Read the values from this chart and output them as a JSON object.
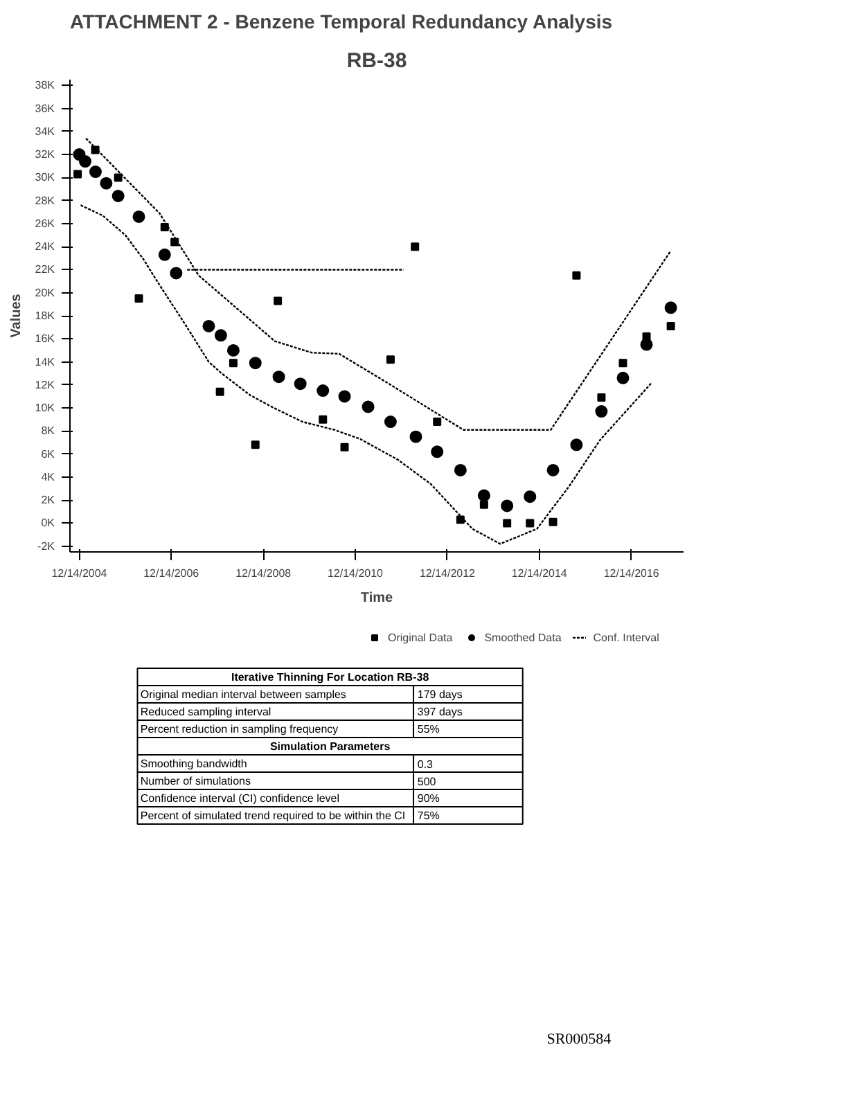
{
  "chart_data": {
    "type": "scatter",
    "title": "ATTACHMENT 2 - Benzene Temporal Redundancy Analysis",
    "subtitle": "RB-38",
    "xlabel": "Time",
    "ylabel": "Values",
    "xlim": [
      "2004-10-01",
      "2018-02-01"
    ],
    "xticks": [
      {
        "value": "2004-12-14",
        "label": "12/14/2004"
      },
      {
        "value": "2006-12-14",
        "label": "12/14/2006"
      },
      {
        "value": "2008-12-14",
        "label": "12/14/2008"
      },
      {
        "value": "2010-12-14",
        "label": "12/14/2010"
      },
      {
        "value": "2012-12-14",
        "label": "12/14/2012"
      },
      {
        "value": "2014-12-14",
        "label": "12/14/2014"
      },
      {
        "value": "2016-12-14",
        "label": "12/14/2016"
      }
    ],
    "ylim": [
      -2500,
      38500
    ],
    "yticks": [
      {
        "value": -2000,
        "label": "-2K"
      },
      {
        "value": 0,
        "label": "0K"
      },
      {
        "value": 2000,
        "label": "2K"
      },
      {
        "value": 4000,
        "label": "4K"
      },
      {
        "value": 6000,
        "label": "6K"
      },
      {
        "value": 8000,
        "label": "8K"
      },
      {
        "value": 10000,
        "label": "10K"
      },
      {
        "value": 12000,
        "label": "12K"
      },
      {
        "value": 14000,
        "label": "14K"
      },
      {
        "value": 16000,
        "label": "16K"
      },
      {
        "value": 18000,
        "label": "18K"
      },
      {
        "value": 20000,
        "label": "20K"
      },
      {
        "value": 22000,
        "label": "22K"
      },
      {
        "value": 24000,
        "label": "24K"
      },
      {
        "value": 26000,
        "label": "26K"
      },
      {
        "value": 28000,
        "label": "28K"
      },
      {
        "value": 30000,
        "label": "30K"
      },
      {
        "value": 32000,
        "label": "32K"
      },
      {
        "value": 34000,
        "label": "34K"
      },
      {
        "value": 36000,
        "label": "36K"
      },
      {
        "value": 38000,
        "label": "38K"
      }
    ],
    "grid": false,
    "legend": "bottom",
    "series": [
      {
        "name": "Original Data",
        "type": "scatter",
        "marker": "square",
        "color": "#000000",
        "x": [
          "2004-12-01",
          "2005-04-20",
          "2005-10-19",
          "2006-04-01",
          "2006-10-23",
          "2007-01-10",
          "2008-01-05",
          "2008-04-20",
          "2008-10-12",
          "2009-04-08",
          "2010-04-01",
          "2010-09-20",
          "2011-09-20",
          "2012-04-01",
          "2012-09-24",
          "2013-03-28",
          "2013-10-01",
          "2014-04-02",
          "2014-10-01",
          "2015-04-02",
          "2015-10-05",
          "2016-04-20",
          "2016-10-08",
          "2017-04-13",
          "2017-10-23"
        ],
        "values": [
          30300,
          32400,
          30000,
          19500,
          25700,
          24400,
          11400,
          13900,
          6800,
          19300,
          9000,
          6600,
          14200,
          24000,
          8800,
          300,
          1600,
          0,
          0,
          100,
          21500,
          10900,
          13900,
          16200,
          17100
        ]
      },
      {
        "name": "Smoothed Data",
        "type": "scatter",
        "marker": "circle",
        "color": "#000000",
        "x": [
          "2004-12-14",
          "2005-01-30",
          "2005-04-22",
          "2005-07-16",
          "2005-10-19",
          "2006-04-01",
          "2006-10-23",
          "2007-01-22",
          "2007-10-08",
          "2008-01-12",
          "2008-04-20",
          "2008-10-12",
          "2009-04-16",
          "2009-10-04",
          "2010-04-01",
          "2010-09-20",
          "2011-03-26",
          "2011-09-20",
          "2012-04-08",
          "2012-09-24",
          "2013-03-28",
          "2013-10-01",
          "2014-04-02",
          "2014-10-01",
          "2015-04-02",
          "2015-10-05",
          "2016-04-20",
          "2016-10-08",
          "2017-04-13",
          "2017-10-23"
        ],
        "values": [
          32000,
          31400,
          30500,
          29500,
          28400,
          26600,
          23300,
          21700,
          17100,
          16300,
          15000,
          13900,
          12700,
          12100,
          11500,
          11000,
          10100,
          8800,
          7500,
          6200,
          4600,
          2400,
          1500,
          2300,
          4600,
          6800,
          9700,
          12600,
          15500,
          18700
        ]
      },
      {
        "name": "Conf. Interval",
        "type": "line",
        "line_style": "dotted",
        "color": "#000000",
        "x": [
          "2005-02-05",
          "2006-09-12",
          "2007-07-20",
          "2009-03-15",
          "2010-01-01",
          "2010-08-08",
          "2011-08-08",
          "2013-04-20",
          "2015-03-15",
          "2017-10-20"
        ],
        "values": [
          33400,
          26900,
          21500,
          15800,
          14800,
          14700,
          12300,
          8100,
          8100,
          23600
        ]
      },
      {
        "type": "line",
        "line_style": "dotted",
        "color": "#000000",
        "x": [
          "2007-04-20",
          "2012-01-01"
        ],
        "values": [
          22000,
          22000
        ]
      },
      {
        "type": "line",
        "line_style": "dotted",
        "color": "#000000",
        "x": [
          "2004-12-25",
          "2005-06-18",
          "2005-12-15",
          "2006-05-08",
          "2006-08-18",
          "2007-04-01",
          "2007-10-08",
          "2008-01-18",
          "2008-09-01",
          "2009-03-08",
          "2009-10-20",
          "2010-07-01",
          "2011-01-22",
          "2011-11-18",
          "2012-08-04",
          "2013-07-01",
          "2014-02-06",
          "2014-11-25",
          "2015-08-08",
          "2016-04-08",
          "2017-05-25"
        ],
        "values": [
          27600,
          26700,
          25000,
          22900,
          21100,
          17300,
          14000,
          13000,
          11100,
          10000,
          8800,
          8100,
          7300,
          5500,
          3400,
          -500,
          -1800,
          -500,
          3200,
          7200,
          12200
        ]
      }
    ],
    "annotations": [
      "Iterative Thinning For Location RB-38",
      "Original median interval between samples",
      "179 days",
      "Reduced sampling interval",
      "397 days",
      "Percent reduction in sampling frequency",
      "55%",
      "Simulation Parameters",
      "Smoothing bandwidth",
      "0.3",
      "Number of simulations",
      "500",
      "Confidence interval (CI) confidence level",
      "90%",
      "Percent of simulated trend required to be within the CI",
      "75%",
      "SR000584"
    ]
  }
}
